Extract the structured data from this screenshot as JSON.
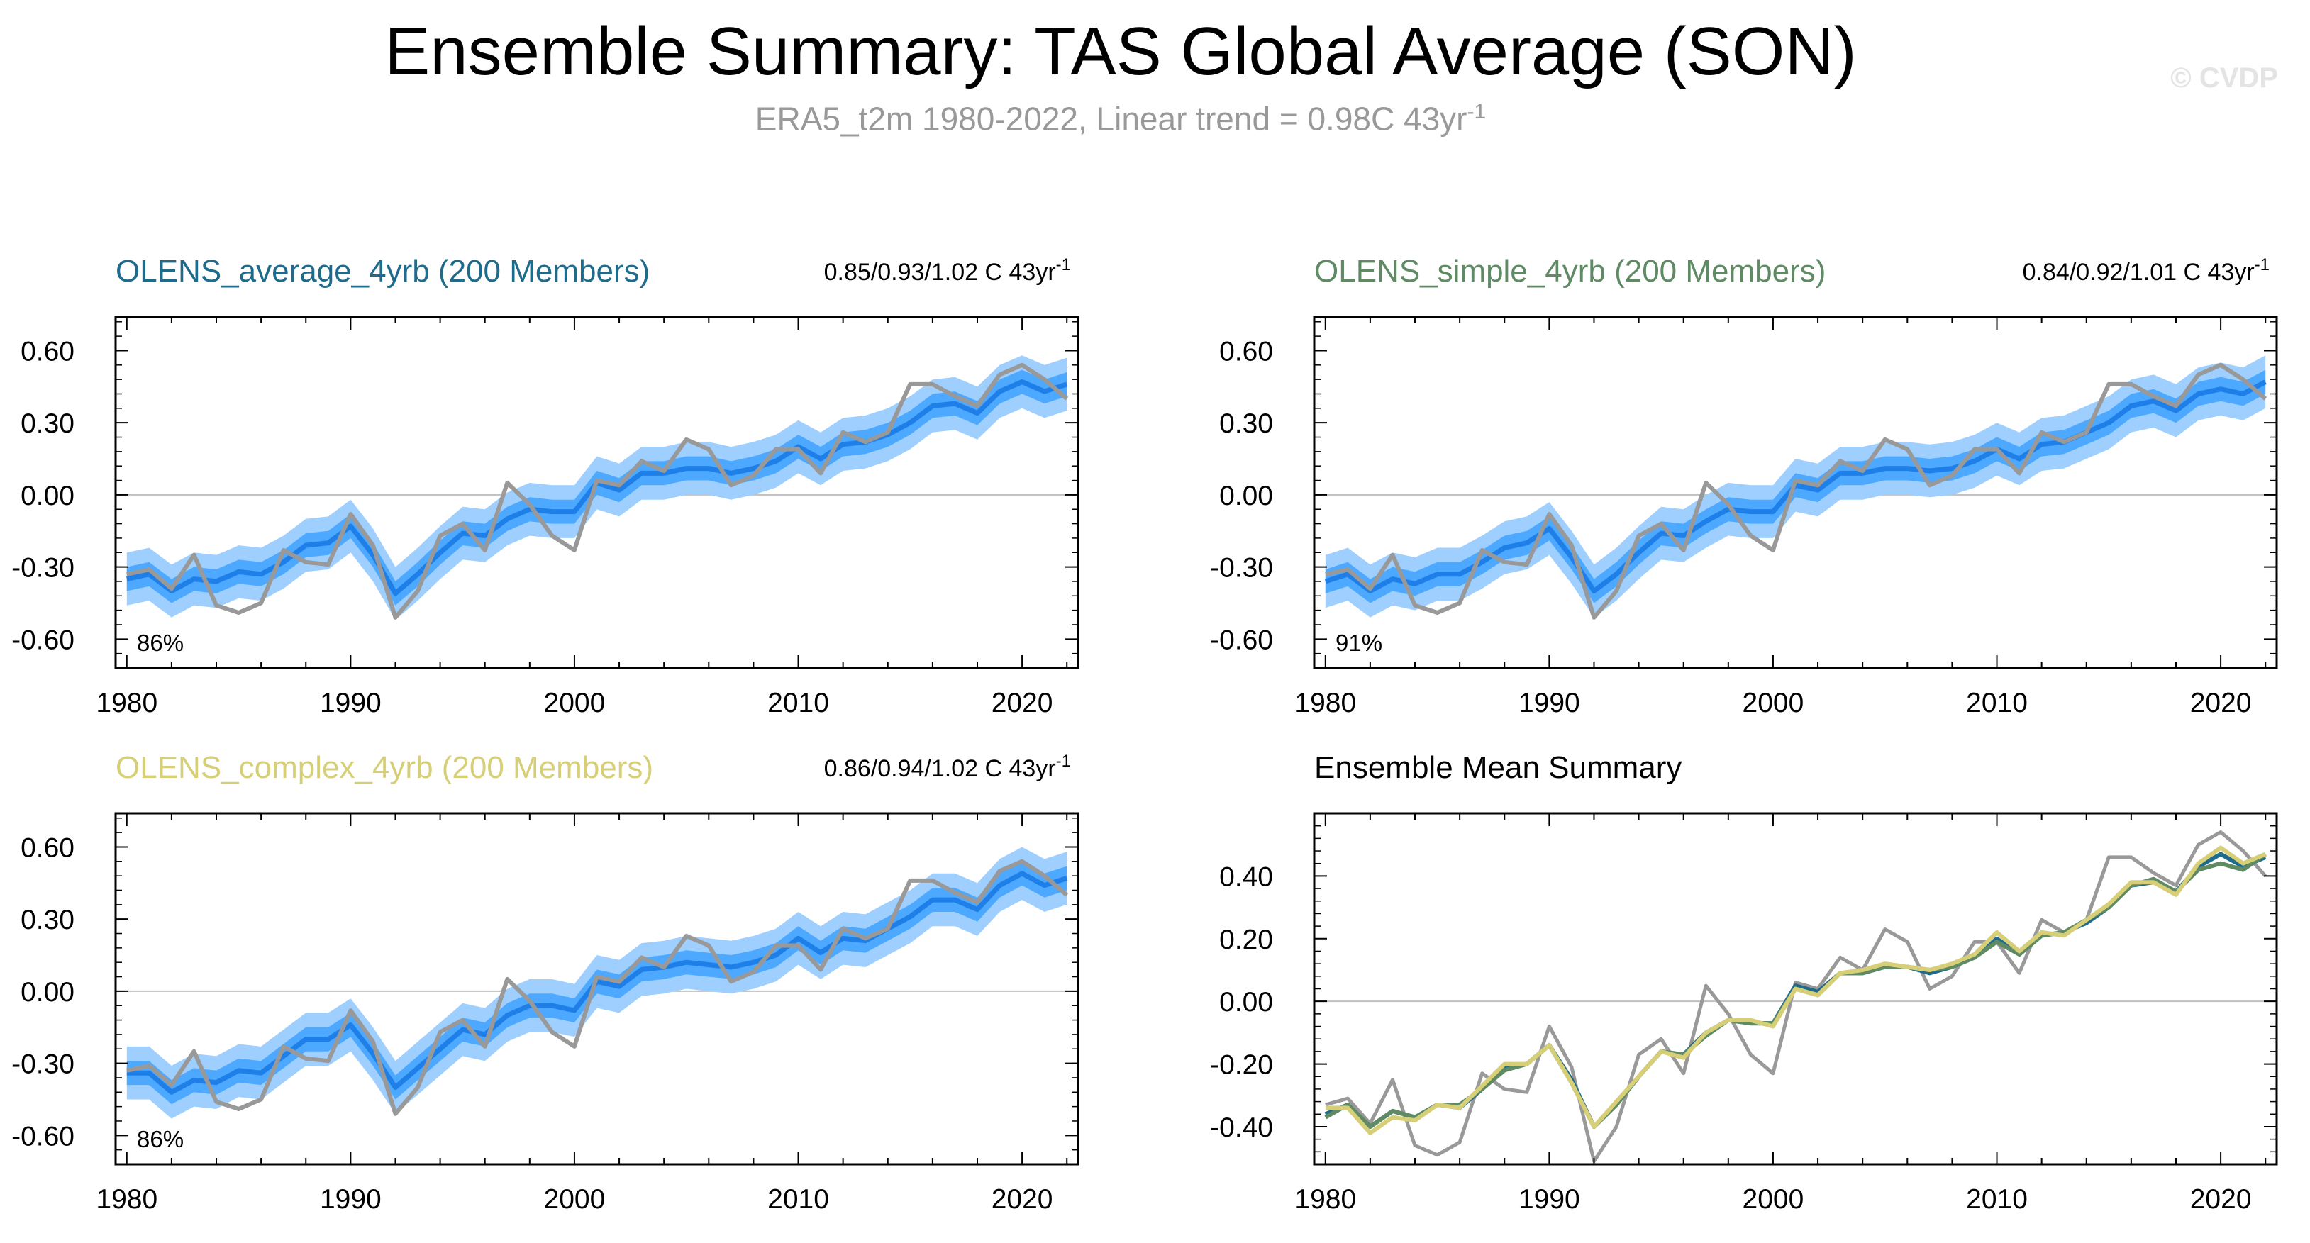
{
  "title": "Ensemble Summary: TAS Global Average (SON)",
  "subtitle": {
    "text": "ERA5_t2m 1980-2022, Linear trend = 0.98C 43yr",
    "sup": "-1"
  },
  "watermark": "© CVDP",
  "colors": {
    "obs": "#999999",
    "ens_mean": "#1e7fe8",
    "band_inner": "#4da8ff",
    "band_outer": "#9ecfff",
    "zero_line": "#c0c0c0",
    "average_color": "#1f6b8c",
    "simple_color": "#5f8a63",
    "complex_color": "#d6cf78"
  },
  "chart_data": [
    {
      "type": "area",
      "title": "OLENS_average_4yrb (200 Members)",
      "title_color": "#1f6b8c",
      "trend_text": "0.85/0.93/1.02 C 43yr",
      "trend_sup": "-1",
      "percent_label": "86%",
      "xlim": [
        1979.5,
        2022.5
      ],
      "ylim": [
        -0.72,
        0.74
      ],
      "x_ticks": [
        "1980",
        "1990",
        "2000",
        "2010",
        "2020"
      ],
      "y_ticks": [
        "0.60",
        "0.30",
        "0.00",
        "-0.30",
        "-0.60"
      ],
      "x": [
        1980,
        1981,
        1982,
        1983,
        1984,
        1985,
        1986,
        1987,
        1988,
        1989,
        1990,
        1991,
        1992,
        1993,
        1994,
        1995,
        1996,
        1997,
        1998,
        1999,
        2000,
        2001,
        2002,
        2003,
        2004,
        2005,
        2006,
        2007,
        2008,
        2009,
        2010,
        2011,
        2012,
        2013,
        2014,
        2015,
        2016,
        2017,
        2018,
        2019,
        2020,
        2021,
        2022
      ],
      "series": [
        {
          "name": "ERA5_t2m",
          "values": [
            -0.33,
            -0.31,
            -0.39,
            -0.25,
            -0.46,
            -0.49,
            -0.45,
            -0.23,
            -0.28,
            -0.29,
            -0.08,
            -0.21,
            -0.51,
            -0.4,
            -0.17,
            -0.12,
            -0.23,
            0.05,
            -0.04,
            -0.17,
            -0.23,
            0.06,
            0.04,
            0.14,
            0.1,
            0.23,
            0.19,
            0.04,
            0.08,
            0.19,
            0.19,
            0.09,
            0.26,
            0.22,
            0.26,
            0.46,
            0.46,
            0.41,
            0.37,
            0.5,
            0.54,
            0.48,
            0.4
          ]
        },
        {
          "name": "ensemble_mean",
          "values": [
            -0.35,
            -0.33,
            -0.4,
            -0.35,
            -0.36,
            -0.32,
            -0.33,
            -0.28,
            -0.21,
            -0.2,
            -0.13,
            -0.25,
            -0.41,
            -0.33,
            -0.24,
            -0.16,
            -0.17,
            -0.1,
            -0.06,
            -0.07,
            -0.07,
            0.05,
            0.02,
            0.09,
            0.09,
            0.11,
            0.11,
            0.09,
            0.11,
            0.14,
            0.2,
            0.15,
            0.21,
            0.22,
            0.25,
            0.3,
            0.37,
            0.38,
            0.34,
            0.43,
            0.47,
            0.43,
            0.46
          ]
        },
        {
          "name": "band_inner_half_width",
          "values": [
            0.05,
            0.05,
            0.05,
            0.05,
            0.05,
            0.05,
            0.05,
            0.05,
            0.05,
            0.05,
            0.05,
            0.05,
            0.05,
            0.05,
            0.05,
            0.05,
            0.05,
            0.05,
            0.05,
            0.05,
            0.05,
            0.05,
            0.05,
            0.05,
            0.05,
            0.05,
            0.05,
            0.05,
            0.05,
            0.05,
            0.05,
            0.05,
            0.05,
            0.05,
            0.05,
            0.05,
            0.05,
            0.05,
            0.05,
            0.05,
            0.05,
            0.05,
            0.05
          ]
        },
        {
          "name": "band_outer_half_width",
          "values": [
            0.11,
            0.11,
            0.11,
            0.11,
            0.11,
            0.11,
            0.11,
            0.11,
            0.11,
            0.11,
            0.11,
            0.11,
            0.11,
            0.11,
            0.11,
            0.11,
            0.11,
            0.11,
            0.11,
            0.11,
            0.11,
            0.11,
            0.11,
            0.11,
            0.11,
            0.11,
            0.11,
            0.11,
            0.11,
            0.11,
            0.11,
            0.11,
            0.11,
            0.11,
            0.11,
            0.11,
            0.11,
            0.11,
            0.11,
            0.11,
            0.11,
            0.11,
            0.11
          ]
        }
      ]
    },
    {
      "type": "area",
      "title": "OLENS_simple_4yrb (200 Members)",
      "title_color": "#5f8a63",
      "trend_text": "0.84/0.92/1.01 C 43yr",
      "trend_sup": "-1",
      "percent_label": "91%",
      "xlim": [
        1979.5,
        2022.5
      ],
      "ylim": [
        -0.72,
        0.74
      ],
      "x_ticks": [
        "1980",
        "1990",
        "2000",
        "2010",
        "2020"
      ],
      "y_ticks": [
        "0.60",
        "0.30",
        "0.00",
        "-0.30",
        "-0.60"
      ],
      "x": [
        1980,
        1981,
        1982,
        1983,
        1984,
        1985,
        1986,
        1987,
        1988,
        1989,
        1990,
        1991,
        1992,
        1993,
        1994,
        1995,
        1996,
        1997,
        1998,
        1999,
        2000,
        2001,
        2002,
        2003,
        2004,
        2005,
        2006,
        2007,
        2008,
        2009,
        2010,
        2011,
        2012,
        2013,
        2014,
        2015,
        2016,
        2017,
        2018,
        2019,
        2020,
        2021,
        2022
      ],
      "series": [
        {
          "name": "ERA5_t2m",
          "values": [
            -0.33,
            -0.31,
            -0.39,
            -0.25,
            -0.46,
            -0.49,
            -0.45,
            -0.23,
            -0.28,
            -0.29,
            -0.08,
            -0.21,
            -0.51,
            -0.4,
            -0.17,
            -0.12,
            -0.23,
            0.05,
            -0.04,
            -0.17,
            -0.23,
            0.06,
            0.04,
            0.14,
            0.1,
            0.23,
            0.19,
            0.04,
            0.08,
            0.19,
            0.19,
            0.09,
            0.26,
            0.22,
            0.26,
            0.46,
            0.46,
            0.41,
            0.37,
            0.5,
            0.54,
            0.48,
            0.4
          ]
        },
        {
          "name": "ensemble_mean",
          "values": [
            -0.36,
            -0.33,
            -0.4,
            -0.35,
            -0.37,
            -0.33,
            -0.33,
            -0.28,
            -0.22,
            -0.2,
            -0.14,
            -0.26,
            -0.4,
            -0.33,
            -0.24,
            -0.16,
            -0.17,
            -0.11,
            -0.06,
            -0.07,
            -0.07,
            0.04,
            0.02,
            0.09,
            0.09,
            0.11,
            0.11,
            0.1,
            0.11,
            0.14,
            0.19,
            0.15,
            0.21,
            0.22,
            0.26,
            0.3,
            0.37,
            0.39,
            0.35,
            0.42,
            0.44,
            0.42,
            0.47
          ]
        },
        {
          "name": "band_inner_half_width",
          "values": [
            0.05,
            0.05,
            0.05,
            0.05,
            0.05,
            0.05,
            0.05,
            0.05,
            0.05,
            0.05,
            0.05,
            0.05,
            0.05,
            0.05,
            0.05,
            0.05,
            0.05,
            0.05,
            0.05,
            0.05,
            0.05,
            0.05,
            0.05,
            0.05,
            0.05,
            0.05,
            0.05,
            0.05,
            0.05,
            0.05,
            0.05,
            0.05,
            0.05,
            0.05,
            0.05,
            0.05,
            0.05,
            0.05,
            0.05,
            0.05,
            0.05,
            0.05,
            0.05
          ]
        },
        {
          "name": "band_outer_half_width",
          "values": [
            0.11,
            0.11,
            0.11,
            0.11,
            0.11,
            0.11,
            0.11,
            0.11,
            0.11,
            0.11,
            0.11,
            0.11,
            0.11,
            0.11,
            0.11,
            0.11,
            0.11,
            0.11,
            0.11,
            0.11,
            0.11,
            0.11,
            0.11,
            0.11,
            0.11,
            0.11,
            0.11,
            0.11,
            0.11,
            0.11,
            0.11,
            0.11,
            0.11,
            0.11,
            0.11,
            0.11,
            0.11,
            0.11,
            0.11,
            0.11,
            0.11,
            0.11,
            0.11
          ]
        }
      ]
    },
    {
      "type": "area",
      "title": "OLENS_complex_4yrb (200 Members)",
      "title_color": "#d6cf78",
      "trend_text": "0.86/0.94/1.02 C 43yr",
      "trend_sup": "-1",
      "percent_label": "86%",
      "xlim": [
        1979.5,
        2022.5
      ],
      "ylim": [
        -0.72,
        0.74
      ],
      "x_ticks": [
        "1980",
        "1990",
        "2000",
        "2010",
        "2020"
      ],
      "y_ticks": [
        "0.60",
        "0.30",
        "0.00",
        "-0.30",
        "-0.60"
      ],
      "x": [
        1980,
        1981,
        1982,
        1983,
        1984,
        1985,
        1986,
        1987,
        1988,
        1989,
        1990,
        1991,
        1992,
        1993,
        1994,
        1995,
        1996,
        1997,
        1998,
        1999,
        2000,
        2001,
        2002,
        2003,
        2004,
        2005,
        2006,
        2007,
        2008,
        2009,
        2010,
        2011,
        2012,
        2013,
        2014,
        2015,
        2016,
        2017,
        2018,
        2019,
        2020,
        2021,
        2022
      ],
      "series": [
        {
          "name": "ERA5_t2m",
          "values": [
            -0.33,
            -0.31,
            -0.39,
            -0.25,
            -0.46,
            -0.49,
            -0.45,
            -0.23,
            -0.28,
            -0.29,
            -0.08,
            -0.21,
            -0.51,
            -0.4,
            -0.17,
            -0.12,
            -0.23,
            0.05,
            -0.04,
            -0.17,
            -0.23,
            0.06,
            0.04,
            0.14,
            0.1,
            0.23,
            0.19,
            0.04,
            0.08,
            0.19,
            0.19,
            0.09,
            0.26,
            0.22,
            0.26,
            0.46,
            0.46,
            0.41,
            0.37,
            0.5,
            0.54,
            0.48,
            0.4
          ]
        },
        {
          "name": "ensemble_mean",
          "values": [
            -0.34,
            -0.34,
            -0.42,
            -0.37,
            -0.38,
            -0.33,
            -0.34,
            -0.27,
            -0.2,
            -0.2,
            -0.14,
            -0.26,
            -0.4,
            -0.32,
            -0.24,
            -0.16,
            -0.18,
            -0.1,
            -0.06,
            -0.06,
            -0.08,
            0.04,
            0.02,
            0.09,
            0.1,
            0.12,
            0.11,
            0.1,
            0.12,
            0.15,
            0.22,
            0.16,
            0.22,
            0.21,
            0.26,
            0.31,
            0.38,
            0.38,
            0.34,
            0.44,
            0.49,
            0.44,
            0.47
          ]
        },
        {
          "name": "band_inner_half_width",
          "values": [
            0.05,
            0.05,
            0.05,
            0.05,
            0.05,
            0.05,
            0.05,
            0.05,
            0.05,
            0.05,
            0.05,
            0.05,
            0.05,
            0.05,
            0.05,
            0.05,
            0.05,
            0.05,
            0.05,
            0.05,
            0.05,
            0.05,
            0.05,
            0.05,
            0.05,
            0.05,
            0.05,
            0.05,
            0.05,
            0.05,
            0.05,
            0.05,
            0.05,
            0.05,
            0.05,
            0.05,
            0.05,
            0.05,
            0.05,
            0.05,
            0.05,
            0.05,
            0.05
          ]
        },
        {
          "name": "band_outer_half_width",
          "values": [
            0.11,
            0.11,
            0.11,
            0.11,
            0.11,
            0.11,
            0.11,
            0.11,
            0.11,
            0.11,
            0.11,
            0.11,
            0.11,
            0.11,
            0.11,
            0.11,
            0.11,
            0.11,
            0.11,
            0.11,
            0.11,
            0.11,
            0.11,
            0.11,
            0.11,
            0.11,
            0.11,
            0.11,
            0.11,
            0.11,
            0.11,
            0.11,
            0.11,
            0.11,
            0.11,
            0.11,
            0.11,
            0.11,
            0.11,
            0.11,
            0.11,
            0.11,
            0.11
          ]
        }
      ]
    },
    {
      "type": "line",
      "title": "Ensemble Mean Summary",
      "title_color": "#000000",
      "xlim": [
        1979.5,
        2022.5
      ],
      "ylim": [
        -0.52,
        0.6
      ],
      "x_ticks": [
        "1980",
        "1990",
        "2000",
        "2010",
        "2020"
      ],
      "y_ticks": [
        "0.40",
        "0.20",
        "0.00",
        "-0.20",
        "-0.40"
      ],
      "x": [
        1980,
        1981,
        1982,
        1983,
        1984,
        1985,
        1986,
        1987,
        1988,
        1989,
        1990,
        1991,
        1992,
        1993,
        1994,
        1995,
        1996,
        1997,
        1998,
        1999,
        2000,
        2001,
        2002,
        2003,
        2004,
        2005,
        2006,
        2007,
        2008,
        2009,
        2010,
        2011,
        2012,
        2013,
        2014,
        2015,
        2016,
        2017,
        2018,
        2019,
        2020,
        2021,
        2022
      ],
      "series": [
        {
          "name": "ERA5_t2m",
          "color": "#999999",
          "values": [
            -0.33,
            -0.31,
            -0.39,
            -0.25,
            -0.46,
            -0.49,
            -0.45,
            -0.23,
            -0.28,
            -0.29,
            -0.08,
            -0.21,
            -0.51,
            -0.4,
            -0.17,
            -0.12,
            -0.23,
            0.05,
            -0.04,
            -0.17,
            -0.23,
            0.06,
            0.04,
            0.14,
            0.1,
            0.23,
            0.19,
            0.04,
            0.08,
            0.19,
            0.19,
            0.09,
            0.26,
            0.22,
            0.26,
            0.46,
            0.46,
            0.41,
            0.37,
            0.5,
            0.54,
            0.48,
            0.4
          ]
        },
        {
          "name": "OLENS_average_4yrb",
          "color": "#1f6b8c",
          "values": [
            -0.36,
            -0.33,
            -0.4,
            -0.35,
            -0.37,
            -0.33,
            -0.34,
            -0.28,
            -0.21,
            -0.2,
            -0.14,
            -0.25,
            -0.4,
            -0.33,
            -0.24,
            -0.16,
            -0.17,
            -0.1,
            -0.06,
            -0.07,
            -0.07,
            0.05,
            0.03,
            0.09,
            0.09,
            0.11,
            0.11,
            0.09,
            0.11,
            0.14,
            0.2,
            0.15,
            0.21,
            0.22,
            0.25,
            0.3,
            0.37,
            0.38,
            0.35,
            0.43,
            0.47,
            0.43,
            0.46
          ]
        },
        {
          "name": "OLENS_simple_4yrb",
          "color": "#5f8a63",
          "values": [
            -0.37,
            -0.33,
            -0.4,
            -0.35,
            -0.37,
            -0.33,
            -0.33,
            -0.28,
            -0.22,
            -0.2,
            -0.14,
            -0.26,
            -0.4,
            -0.33,
            -0.24,
            -0.16,
            -0.17,
            -0.11,
            -0.06,
            -0.07,
            -0.07,
            0.04,
            0.02,
            0.09,
            0.09,
            0.11,
            0.11,
            0.1,
            0.11,
            0.14,
            0.19,
            0.15,
            0.21,
            0.22,
            0.26,
            0.3,
            0.37,
            0.39,
            0.35,
            0.42,
            0.44,
            0.42,
            0.47
          ]
        },
        {
          "name": "OLENS_complex_4yrb",
          "color": "#d6cf78",
          "values": [
            -0.34,
            -0.34,
            -0.42,
            -0.37,
            -0.38,
            -0.33,
            -0.34,
            -0.27,
            -0.2,
            -0.2,
            -0.14,
            -0.26,
            -0.4,
            -0.32,
            -0.24,
            -0.16,
            -0.18,
            -0.1,
            -0.06,
            -0.06,
            -0.08,
            0.04,
            0.02,
            0.09,
            0.1,
            0.12,
            0.11,
            0.1,
            0.12,
            0.15,
            0.22,
            0.16,
            0.22,
            0.21,
            0.26,
            0.31,
            0.38,
            0.38,
            0.34,
            0.44,
            0.49,
            0.44,
            0.47
          ]
        }
      ]
    }
  ]
}
